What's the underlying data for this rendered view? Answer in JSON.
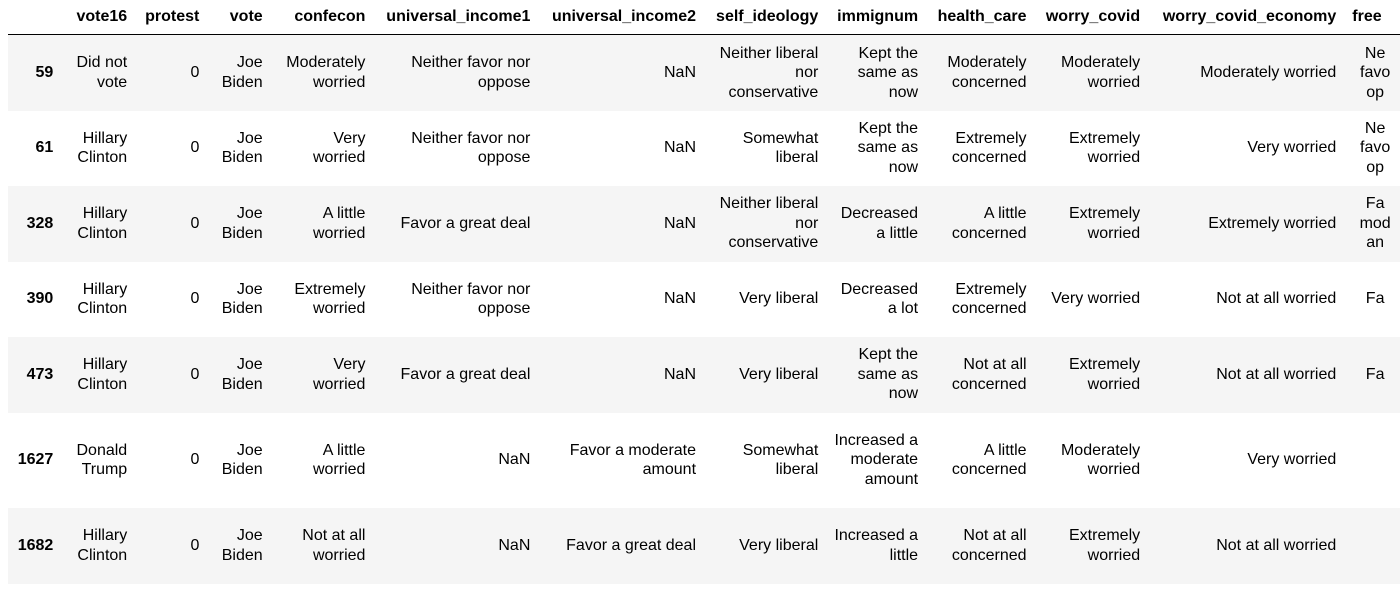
{
  "dataframe": {
    "columns": [
      "",
      "vote16",
      "protest",
      "vote",
      "confecon",
      "universal_income1",
      "universal_income2",
      "self_ideology",
      "immignum",
      "health_care",
      "worry_covid",
      "worry_covid_economy",
      "free"
    ],
    "rows": [
      {
        "index": "59",
        "cells": [
          "Did not vote",
          "0",
          "Joe Biden",
          "Moderately worried",
          "Neither favor nor oppose",
          "NaN",
          "Neither liberal nor conservative",
          "Kept the same as now",
          "Moderately concerned",
          "Moderately worried",
          "Moderately worried",
          "Ne favo op"
        ]
      },
      {
        "index": "61",
        "cells": [
          "Hillary Clinton",
          "0",
          "Joe Biden",
          "Very worried",
          "Neither favor nor oppose",
          "NaN",
          "Somewhat liberal",
          "Kept the same as now",
          "Extremely concerned",
          "Extremely worried",
          "Very worried",
          "Ne favo op"
        ]
      },
      {
        "index": "328",
        "cells": [
          "Hillary Clinton",
          "0",
          "Joe Biden",
          "A little worried",
          "Favor a great deal",
          "NaN",
          "Neither liberal nor conservative",
          "Decreased a little",
          "A little concerned",
          "Extremely worried",
          "Extremely worried",
          "Fa mod an"
        ]
      },
      {
        "index": "390",
        "cells": [
          "Hillary Clinton",
          "0",
          "Joe Biden",
          "Extremely worried",
          "Neither favor nor oppose",
          "NaN",
          "Very liberal",
          "Decreased a lot",
          "Extremely concerned",
          "Very worried",
          "Not at all worried",
          "Fa"
        ]
      },
      {
        "index": "473",
        "cells": [
          "Hillary Clinton",
          "0",
          "Joe Biden",
          "Very worried",
          "Favor a great deal",
          "NaN",
          "Very liberal",
          "Kept the same as now",
          "Not at all concerned",
          "Extremely worried",
          "Not at all worried",
          "Fa"
        ]
      },
      {
        "index": "1627",
        "cells": [
          "Donald Trump",
          "0",
          "Joe Biden",
          "A little worried",
          "NaN",
          "Favor a moderate amount",
          "Somewhat liberal",
          "Increased a moderate amount",
          "A little concerned",
          "Moderately worried",
          "Very worried",
          ""
        ]
      },
      {
        "index": "1682",
        "cells": [
          "Hillary Clinton",
          "0",
          "Joe Biden",
          "Not at all worried",
          "NaN",
          "Favor a great deal",
          "Very liberal",
          "Increased a little",
          "Not at all concerned",
          "Extremely worried",
          "Not at all worried",
          ""
        ]
      }
    ]
  }
}
